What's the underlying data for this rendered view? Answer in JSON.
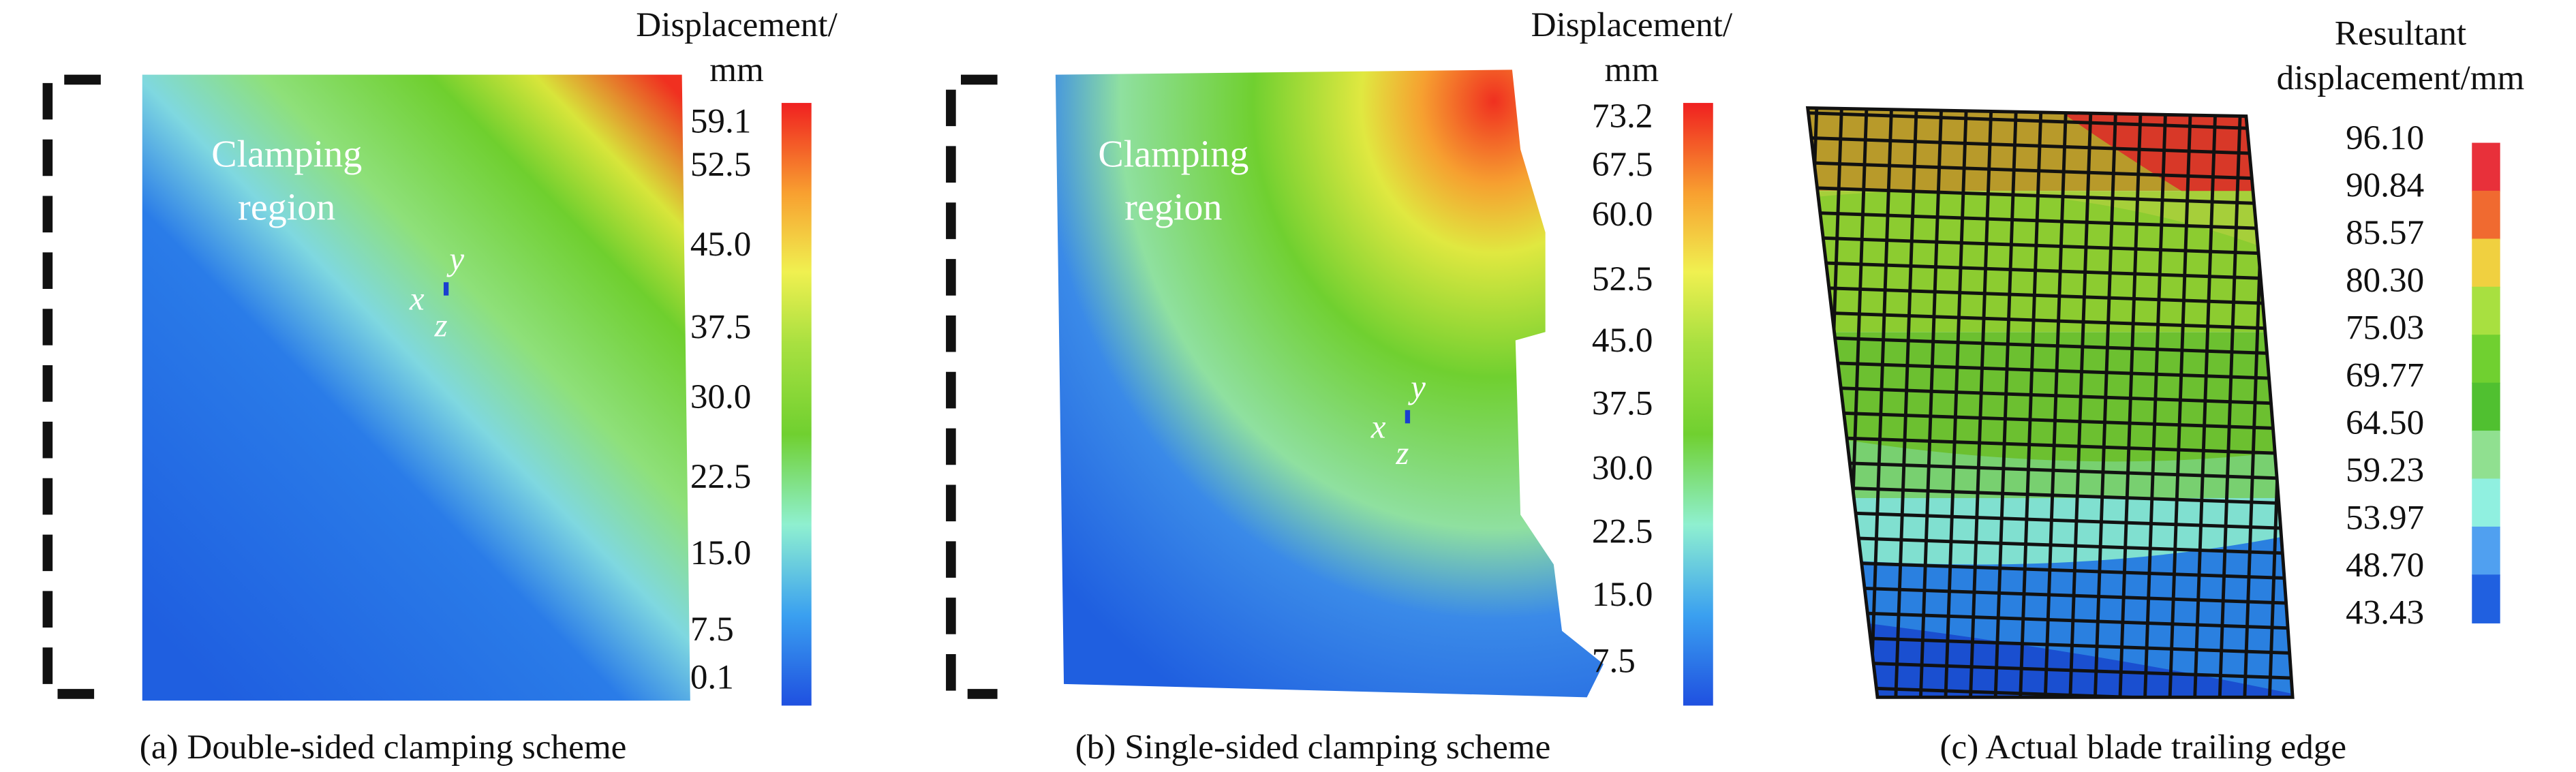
{
  "panels": [
    {
      "caption": "(a) Double-sided clamping scheme",
      "colorbar": {
        "title": [
          "Displacement/",
          "mm"
        ],
        "ticks": [
          "59.1",
          "52.5",
          "45.0",
          "37.5",
          "30.0",
          "22.5",
          "15.0",
          "7.5",
          "0.1"
        ]
      },
      "region_label": [
        "Clamping",
        "region"
      ],
      "axes": [
        "x",
        "y",
        "z"
      ]
    },
    {
      "caption": "(b) Single-sided clamping scheme",
      "colorbar": {
        "title": [
          "Displacement/",
          "mm"
        ],
        "ticks": [
          "73.2",
          "67.5",
          "60.0",
          "52.5",
          "45.0",
          "37.5",
          "30.0",
          "22.5",
          "15.0",
          "7.5"
        ]
      },
      "region_label": [
        "Clamping",
        "region"
      ],
      "axes": [
        "x",
        "y",
        "z"
      ]
    },
    {
      "caption": "(c) Actual blade trailing edge",
      "colorbar": {
        "title": [
          "Resultant",
          "displacement/mm"
        ],
        "ticks": [
          "96.10",
          "90.84",
          "85.57",
          "80.30",
          "75.03",
          "69.77",
          "64.50",
          "59.23",
          "53.97",
          "48.70",
          "43.43"
        ]
      }
    }
  ]
}
